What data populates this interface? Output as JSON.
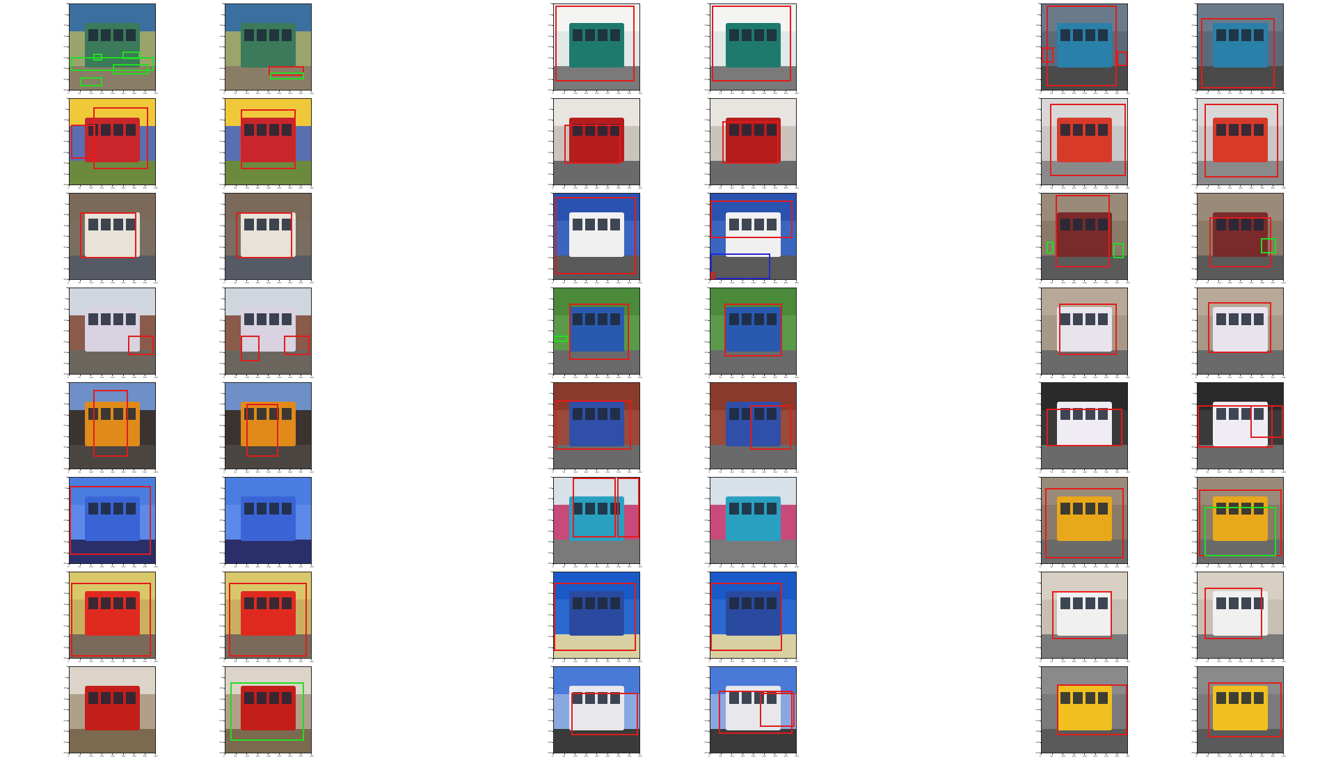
{
  "figure": {
    "x_ticks": [
      "0",
      "50",
      "100",
      "150",
      "200",
      "250",
      "300",
      "350",
      "400"
    ],
    "y_ticks": [
      "0",
      "50",
      "100",
      "150",
      "200",
      "250",
      "300",
      "350",
      "400"
    ],
    "box_colors": {
      "red": "#e31b1b",
      "green": "#22dd22",
      "blue": "#2626d9"
    },
    "columns": [
      {
        "plots": [
          {
            "scene": "palm-beach",
            "boxes": [
              [
                "green",
                0.02,
                0.62,
                0.98,
                0.78
              ],
              [
                "green",
                0.12,
                0.85,
                0.38,
                0.96
              ],
              [
                "green",
                0.28,
                0.58,
                0.38,
                0.66
              ],
              [
                "green",
                0.62,
                0.55,
                0.82,
                0.64
              ],
              [
                "green",
                0.5,
                0.7,
                0.92,
                0.82
              ]
            ]
          },
          {
            "scene": "red-bus",
            "boxes": [
              [
                "red",
                0.28,
                0.1,
                0.92,
                0.82
              ],
              [
                "red",
                0.02,
                0.3,
                0.3,
                0.7
              ]
            ]
          },
          {
            "scene": "white-bus",
            "boxes": [
              [
                "red",
                0.12,
                0.22,
                0.78,
                0.76
              ]
            ]
          },
          {
            "scene": "street",
            "boxes": [
              [
                "red",
                0.68,
                0.55,
                0.98,
                0.78
              ]
            ]
          },
          {
            "scene": "orange-bus",
            "boxes": [
              [
                "red",
                0.28,
                0.08,
                0.68,
                0.86
              ]
            ]
          },
          {
            "scene": "blue-bus",
            "boxes": [
              [
                "red",
                0.0,
                0.1,
                0.95,
                0.9
              ]
            ]
          },
          {
            "scene": "red-white-bus",
            "boxes": [
              [
                "red",
                0.02,
                0.12,
                0.95,
                0.98
              ]
            ]
          },
          {
            "scene": "red-truck",
            "boxes": []
          }
        ]
      },
      {
        "plots": [
          {
            "scene": "palm-beach",
            "boxes": [
              [
                "red",
                0.5,
                0.72,
                0.92,
                0.84
              ],
              [
                "green",
                0.52,
                0.8,
                0.92,
                0.88
              ]
            ]
          },
          {
            "scene": "red-bus",
            "boxes": [
              [
                "red",
                0.18,
                0.12,
                0.82,
                0.82
              ]
            ]
          },
          {
            "scene": "white-bus",
            "boxes": [
              [
                "red",
                0.12,
                0.22,
                0.78,
                0.76
              ]
            ]
          },
          {
            "scene": "street",
            "boxes": [
              [
                "red",
                0.18,
                0.55,
                0.4,
                0.85
              ],
              [
                "red",
                0.68,
                0.55,
                0.98,
                0.78
              ]
            ]
          },
          {
            "scene": "orange-bus",
            "boxes": [
              [
                "red",
                0.24,
                0.24,
                0.62,
                0.86
              ]
            ]
          },
          {
            "scene": "blue-bus",
            "boxes": []
          },
          {
            "scene": "red-white-bus",
            "boxes": [
              [
                "red",
                0.04,
                0.12,
                0.95,
                0.98
              ]
            ]
          },
          {
            "scene": "red-truck",
            "boxes": [
              [
                "green",
                0.06,
                0.18,
                0.92,
                0.86
              ]
            ]
          }
        ]
      },
      {
        "plots": [
          {
            "scene": "green-bus",
            "boxes": [
              [
                "red",
                0.02,
                0.02,
                0.94,
                0.9
              ]
            ]
          },
          {
            "scene": "red-bus-small",
            "boxes": [
              [
                "red",
                0.12,
                0.3,
                0.78,
                0.76
              ]
            ]
          },
          {
            "scene": "stagecoach",
            "boxes": [
              [
                "red",
                0.02,
                0.04,
                0.96,
                0.94
              ]
            ]
          },
          {
            "scene": "stagecoach-tree",
            "boxes": [
              [
                "red",
                0.18,
                0.18,
                0.88,
                0.84
              ],
              [
                "green",
                0.0,
                0.55,
                0.16,
                0.63
              ]
            ]
          },
          {
            "scene": "stagecoach-brick",
            "boxes": [
              [
                "red",
                0.02,
                0.2,
                0.9,
                0.78
              ]
            ]
          },
          {
            "scene": "double-decker-teal",
            "boxes": [
              [
                "red",
                0.22,
                0.0,
                0.72,
                0.7
              ],
              [
                "red",
                0.74,
                0.0,
                1.0,
                0.7
              ]
            ]
          },
          {
            "scene": "blue-coach",
            "boxes": [
              [
                "red",
                0.0,
                0.12,
                0.96,
                0.92
              ]
            ]
          },
          {
            "scene": "coach-sky",
            "boxes": [
              [
                "red",
                0.2,
                0.3,
                0.98,
                0.8
              ]
            ]
          }
        ]
      },
      {
        "plots": [
          {
            "scene": "green-bus",
            "boxes": [
              [
                "red",
                0.02,
                0.02,
                0.94,
                0.9
              ]
            ]
          },
          {
            "scene": "red-bus-small",
            "boxes": [
              [
                "red",
                0.14,
                0.26,
                0.8,
                0.76
              ]
            ]
          },
          {
            "scene": "stagecoach",
            "boxes": [
              [
                "red",
                0.0,
                0.08,
                0.96,
                0.52
              ],
              [
                "blue",
                0.0,
                0.7,
                0.7,
                1.0
              ],
              [
                "red",
                0.0,
                0.92,
                0.06,
                1.0
              ]
            ]
          },
          {
            "scene": "stagecoach-tree",
            "boxes": [
              [
                "red",
                0.16,
                0.18,
                0.84,
                0.8
              ]
            ]
          },
          {
            "scene": "stagecoach-brick",
            "boxes": [
              [
                "red",
                0.46,
                0.26,
                0.94,
                0.78
              ]
            ]
          },
          {
            "scene": "double-decker-teal",
            "boxes": []
          },
          {
            "scene": "blue-coach",
            "boxes": [
              [
                "red",
                0.0,
                0.12,
                0.84,
                0.92
              ]
            ]
          },
          {
            "scene": "coach-sky",
            "boxes": [
              [
                "red",
                0.1,
                0.28,
                0.96,
                0.78
              ],
              [
                "red",
                0.58,
                0.3,
                0.98,
                0.7
              ]
            ]
          }
        ]
      },
      {
        "plots": [
          {
            "scene": "blue-double-decker",
            "boxes": [
              [
                "red",
                0.06,
                0.02,
                0.88,
                0.96
              ],
              [
                "red",
                0.0,
                0.5,
                0.14,
                0.68
              ],
              [
                "red",
                0.88,
                0.55,
                1.0,
                0.72
              ]
            ]
          },
          {
            "scene": "red-double-decker",
            "boxes": [
              [
                "red",
                0.1,
                0.06,
                0.98,
                0.9
              ]
            ]
          },
          {
            "scene": "brown-bus",
            "boxes": [
              [
                "red",
                0.16,
                0.02,
                0.8,
                0.86
              ],
              [
                "green",
                0.84,
                0.58,
                0.96,
                0.76
              ],
              [
                "green",
                0.06,
                0.56,
                0.14,
                0.7
              ]
            ]
          },
          {
            "scene": "white-purple-bus",
            "boxes": [
              [
                "red",
                0.2,
                0.18,
                0.88,
                0.78
              ]
            ]
          },
          {
            "scene": "purple-coach",
            "boxes": [
              [
                "red",
                0.06,
                0.3,
                0.94,
                0.74
              ]
            ]
          },
          {
            "scene": "school-bus",
            "boxes": [
              [
                "red",
                0.04,
                0.12,
                0.96,
                0.94
              ]
            ]
          },
          {
            "scene": "blue-white-bus",
            "boxes": [
              [
                "red",
                0.12,
                0.22,
                0.82,
                0.78
              ]
            ]
          },
          {
            "scene": "yellow-red-bus",
            "boxes": [
              [
                "red",
                0.18,
                0.2,
                1.0,
                0.8
              ]
            ]
          }
        ]
      },
      {
        "plots": [
          {
            "scene": "blue-double-decker",
            "boxes": [
              [
                "red",
                0.04,
                0.16,
                0.9,
                0.98
              ]
            ]
          },
          {
            "scene": "red-double-decker",
            "boxes": [
              [
                "red",
                0.08,
                0.06,
                0.94,
                0.92
              ]
            ]
          },
          {
            "scene": "brown-bus",
            "boxes": [
              [
                "red",
                0.14,
                0.28,
                0.86,
                0.86
              ],
              [
                "green",
                0.74,
                0.52,
                0.92,
                0.7
              ]
            ]
          },
          {
            "scene": "white-purple-bus",
            "boxes": [
              [
                "red",
                0.12,
                0.16,
                0.86,
                0.76
              ]
            ]
          },
          {
            "scene": "purple-coach",
            "boxes": [
              [
                "red",
                0.0,
                0.26,
                0.88,
                0.76
              ],
              [
                "red",
                0.62,
                0.26,
                1.0,
                0.64
              ]
            ]
          },
          {
            "scene": "school-bus",
            "boxes": [
              [
                "red",
                0.02,
                0.14,
                0.98,
                0.92
              ],
              [
                "green",
                0.08,
                0.34,
                0.92,
                0.92
              ]
            ]
          },
          {
            "scene": "blue-white-bus",
            "boxes": [
              [
                "red",
                0.08,
                0.18,
                0.76,
                0.78
              ]
            ]
          },
          {
            "scene": "yellow-red-bus",
            "boxes": [
              [
                "red",
                0.12,
                0.18,
                0.98,
                0.82
              ]
            ]
          }
        ]
      }
    ]
  },
  "scenes": {
    "palm-beach": {
      "sky": "#3a6fa0",
      "ground": "#8a7d66",
      "bus": "#3b7a5a",
      "bg": "#9aa56e"
    },
    "red-bus": {
      "sky": "#f0c93a",
      "ground": "#6b8a3e",
      "bus": "#c8262a",
      "bg": "#5a6fb0"
    },
    "white-bus": {
      "sky": "#7b6a5a",
      "ground": "#555a64",
      "bus": "#e8e2d8",
      "bg": "#7a6e60"
    },
    "street": {
      "sky": "#cfd6de",
      "ground": "#6b665d",
      "bus": "#d9d2e0",
      "bg": "#8a5a4a"
    },
    "orange-bus": {
      "sky": "#6e8fc8",
      "ground": "#4a4540",
      "bus": "#e08a1a",
      "bg": "#3a3330"
    },
    "blue-bus": {
      "sky": "#4a7de0",
      "ground": "#2a2f6a",
      "bus": "#3a64d6",
      "bg": "#5d8ae8"
    },
    "red-white-bus": {
      "sky": "#d9c86a",
      "ground": "#7a6a5a",
      "bus": "#e02a20",
      "bg": "#c8b060"
    },
    "red-truck": {
      "sky": "#dcd4c8",
      "ground": "#7b6a50",
      "bus": "#c41e1a",
      "bg": "#b0a08a"
    },
    "green-bus": {
      "sky": "#f4f4f2",
      "ground": "#7a7a7a",
      "bus": "#1f7a6e",
      "bg": "#e0e8e8"
    },
    "red-bus-small": {
      "sky": "#e8e4e0",
      "ground": "#6a6a6a",
      "bus": "#b51c1c",
      "bg": "#cac4bc"
    },
    "stagecoach": {
      "sky": "#2a52b0",
      "ground": "#5a5a5a",
      "bus": "#f0f0f0",
      "bg": "#3a66c0"
    },
    "stagecoach-tree": {
      "sky": "#4a8a3a",
      "ground": "#6a6a6a",
      "bus": "#2a5ab0",
      "bg": "#5a9a4a"
    },
    "stagecoach-brick": {
      "sky": "#8a3a2a",
      "ground": "#6a6a6a",
      "bus": "#2f4fa8",
      "bg": "#9a4a3a"
    },
    "double-decker-teal": {
      "sky": "#d8e0e8",
      "ground": "#7a7a7a",
      "bus": "#2aa0c0",
      "bg": "#c84a7a"
    },
    "blue-coach": {
      "sky": "#1a5ac8",
      "ground": "#d8d0a0",
      "bus": "#2a4aa0",
      "bg": "#2a6ad0"
    },
    "coach-sky": {
      "sky": "#4a7ad8",
      "ground": "#3a3a3a",
      "bus": "#e8e8ec",
      "bg": "#8aa8e0"
    },
    "blue-double-decker": {
      "sky": "#6a7a8a",
      "ground": "#4a4a4a",
      "bus": "#2a80a8",
      "bg": "#5a6a7a"
    },
    "red-double-decker": {
      "sky": "#d8d8d8",
      "ground": "#8a8a8a",
      "bus": "#d83a2a",
      "bg": "#c8c8c8"
    },
    "brown-bus": {
      "sky": "#9a8a78",
      "ground": "#5a5a5a",
      "bus": "#7a2a2a",
      "bg": "#8a7a68"
    },
    "white-purple-bus": {
      "sky": "#b8a898",
      "ground": "#6a6a6a",
      "bus": "#e8e4ec",
      "bg": "#a89888"
    },
    "purple-coach": {
      "sky": "#2a2a2a",
      "ground": "#6a6a6a",
      "bus": "#f0ecf4",
      "bg": "#3a3a3a"
    },
    "school-bus": {
      "sky": "#9a8a7a",
      "ground": "#6a6a6a",
      "bus": "#e8a81a",
      "bg": "#8a7a6a"
    },
    "blue-white-bus": {
      "sky": "#d8cfc4",
      "ground": "#7a7a7a",
      "bus": "#f0f0f0",
      "bg": "#c8bfb4"
    },
    "yellow-red-bus": {
      "sky": "#8a8a8a",
      "ground": "#5a5a5a",
      "bus": "#f0c020",
      "bg": "#7a7a7a"
    }
  }
}
